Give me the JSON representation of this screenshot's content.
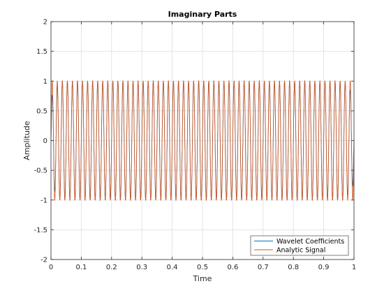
{
  "chart_data": {
    "type": "line",
    "title": "Imaginary Parts",
    "xlabel": "Time",
    "ylabel": "Amplitude",
    "xlim": [
      0,
      1
    ],
    "ylim": [
      -2,
      2
    ],
    "xticks": [
      "0",
      "0.1",
      "0.2",
      "0.3",
      "0.4",
      "0.5",
      "0.6",
      "0.7",
      "0.8",
      "0.9",
      "1"
    ],
    "yticks": [
      "-2",
      "-1.5",
      "-1",
      "-0.5",
      "0",
      "0.5",
      "1",
      "1.5",
      "2"
    ],
    "grid": true,
    "legend_position": "bottom-right",
    "series": [
      {
        "name": "Wavelet Coefficients",
        "color": "#0072bd",
        "function": "sine",
        "amplitude": 1,
        "cycles": 60,
        "edge_effects": true
      },
      {
        "name": "Analytic Signal",
        "color": "#d95319",
        "function": "sine",
        "amplitude": 1,
        "cycles": 60
      }
    ]
  }
}
